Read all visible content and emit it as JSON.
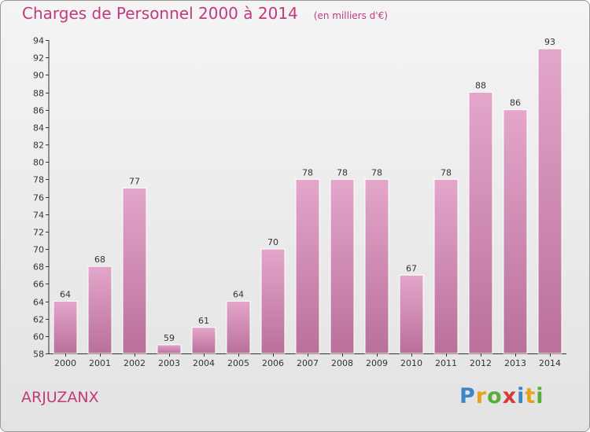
{
  "header": {
    "title": "Charges de Personnel 2000 à 2014",
    "subtitle": "(en milliers d'€)"
  },
  "footer": {
    "place": "ARJUZANX",
    "logo_letters": [
      "P",
      "r",
      "o",
      "x",
      "i",
      "t",
      "i"
    ]
  },
  "colors": {
    "title": "#c23a7d",
    "bar_light": "#e4a6cb",
    "bar_dark": "#b9709a",
    "logo": [
      "#3b86c7",
      "#e6a21c",
      "#58ad3b",
      "#d83a3a",
      "#3b86c7",
      "#e6a21c",
      "#58ad3b"
    ]
  },
  "chart_data": {
    "type": "bar",
    "title": "Charges de Personnel 2000 à 2014",
    "subtitle": "(en milliers d'€)",
    "categories": [
      "2000",
      "2001",
      "2002",
      "2003",
      "2004",
      "2005",
      "2006",
      "2007",
      "2008",
      "2009",
      "2010",
      "2011",
      "2012",
      "2013",
      "2014"
    ],
    "values": [
      64,
      68,
      77,
      59,
      61,
      64,
      70,
      78,
      78,
      78,
      67,
      78,
      88,
      86,
      93
    ],
    "xlabel": "",
    "ylabel": "",
    "ylim": [
      58,
      94
    ],
    "yticks": [
      58,
      60,
      62,
      64,
      66,
      68,
      70,
      72,
      74,
      76,
      78,
      80,
      82,
      84,
      86,
      88,
      90,
      92,
      94
    ],
    "grid": false,
    "data_labels": true
  }
}
